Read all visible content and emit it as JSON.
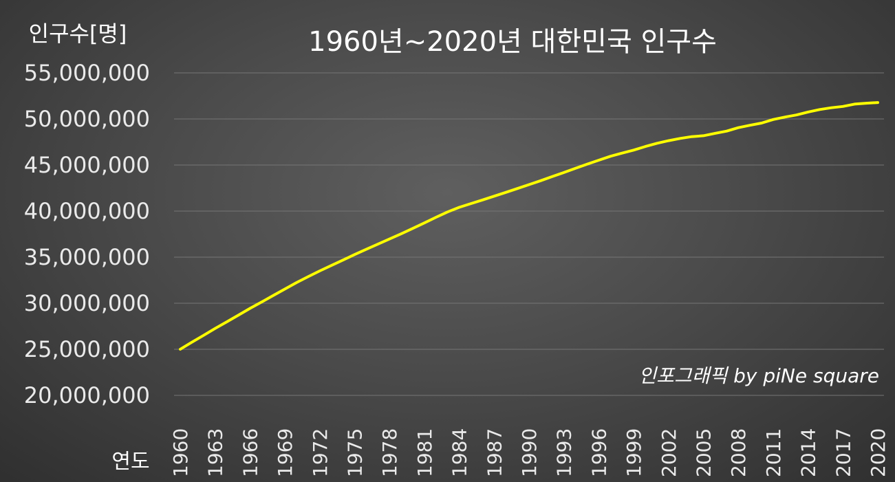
{
  "chart_data": {
    "type": "line",
    "title": "1960년~2020년 대한민국 인구수",
    "ylabel": "인구수[명]",
    "xlabel": "연도",
    "credit": "인포그래픽 by piNe square",
    "ylim": [
      20000000,
      55000000
    ],
    "yticks": [
      20000000,
      25000000,
      30000000,
      35000000,
      40000000,
      45000000,
      50000000,
      55000000
    ],
    "ytick_labels": [
      "20,000,000",
      "25,000,000",
      "30,000,000",
      "35,000,000",
      "40,000,000",
      "45,000,000",
      "50,000,000",
      "55,000,000"
    ],
    "xticks": [
      "1960",
      "1963",
      "1966",
      "1969",
      "1972",
      "1975",
      "1978",
      "1981",
      "1984",
      "1987",
      "1990",
      "1993",
      "1996",
      "1999",
      "2002",
      "2005",
      "2008",
      "2011",
      "2014",
      "2017",
      "2020"
    ],
    "grid": true,
    "line_color": "#ffff00",
    "series": [
      {
        "x": [
          1960,
          1961,
          1962,
          1963,
          1964,
          1965,
          1966,
          1967,
          1968,
          1969,
          1970,
          1971,
          1972,
          1973,
          1974,
          1975,
          1976,
          1977,
          1978,
          1979,
          1980,
          1981,
          1982,
          1983,
          1984,
          1985,
          1986,
          1987,
          1988,
          1989,
          1990,
          1991,
          1992,
          1993,
          1994,
          1995,
          1996,
          1997,
          1998,
          1999,
          2000,
          2001,
          2002,
          2003,
          2004,
          2005,
          2006,
          2007,
          2008,
          2009,
          2010,
          2011,
          2012,
          2013,
          2014,
          2015,
          2016,
          2017,
          2018,
          2019,
          2020
        ],
        "values": [
          25010000,
          25770000,
          26510000,
          27260000,
          27980000,
          28700000,
          29440000,
          30130000,
          30840000,
          31540000,
          32240000,
          32880000,
          33510000,
          34100000,
          34690000,
          35280000,
          35850000,
          36410000,
          36970000,
          37530000,
          38120000,
          38720000,
          39330000,
          39910000,
          40410000,
          40810000,
          41210000,
          41620000,
          42030000,
          42450000,
          42870000,
          43300000,
          43750000,
          44190000,
          44640000,
          45090000,
          45520000,
          45950000,
          46290000,
          46620000,
          47010000,
          47360000,
          47640000,
          47890000,
          48080000,
          48180000,
          48440000,
          48680000,
          49050000,
          49310000,
          49550000,
          49940000,
          50200000,
          50430000,
          50750000,
          51020000,
          51220000,
          51360000,
          51610000,
          51710000,
          51780000
        ]
      }
    ]
  }
}
